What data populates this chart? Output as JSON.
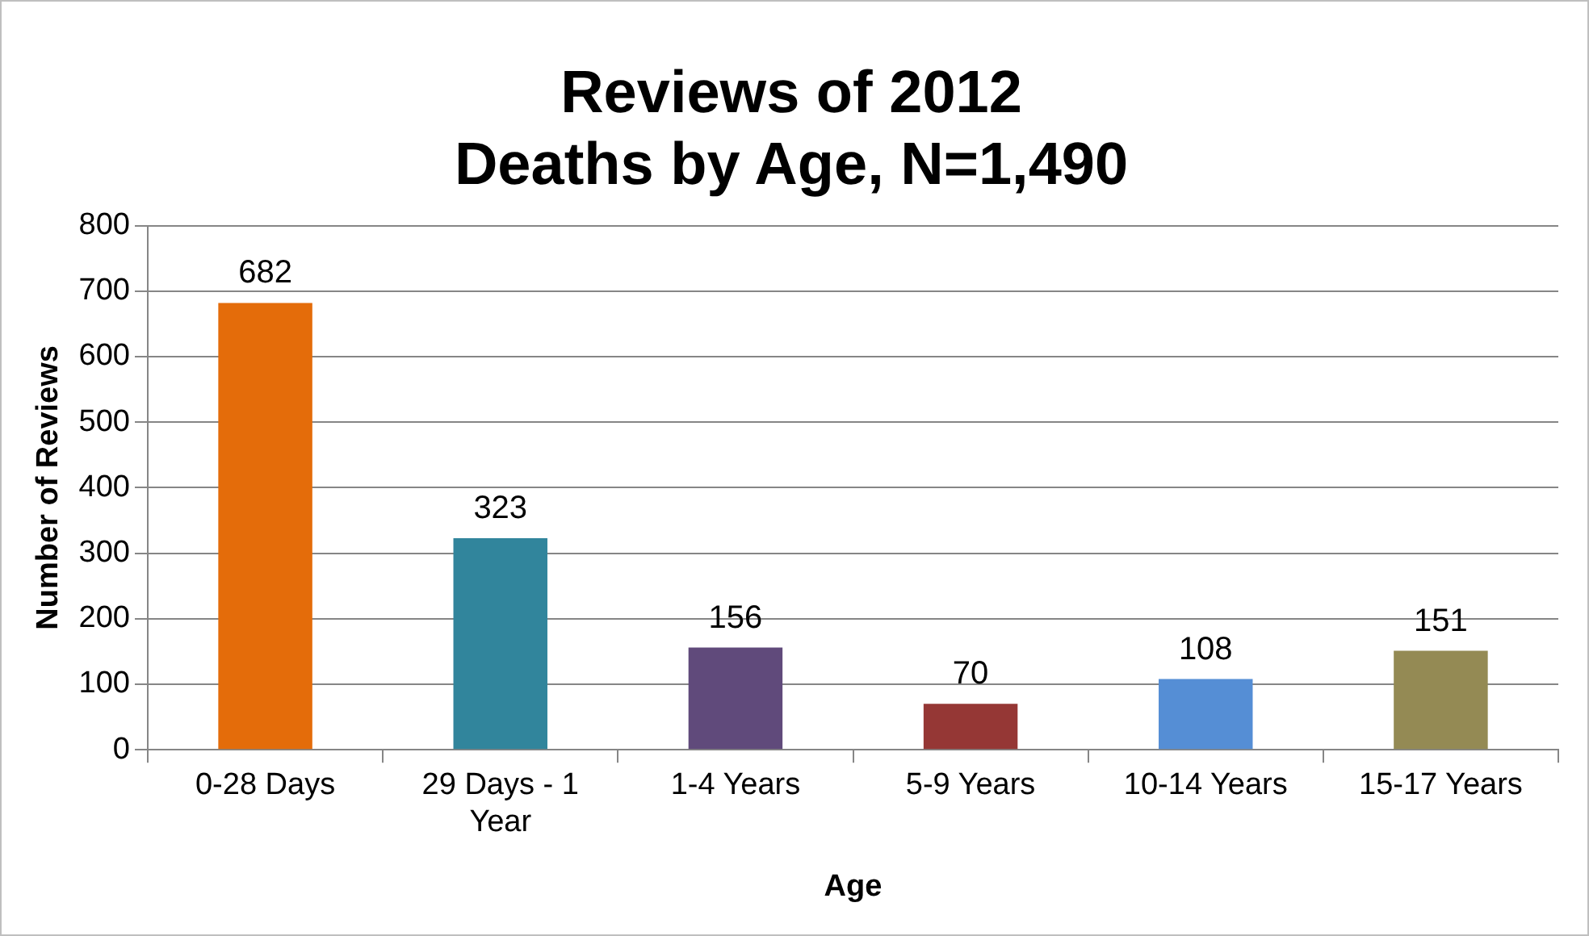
{
  "chart_data": {
    "type": "bar",
    "title": "Reviews of 2012\nDeaths by Age, N=1,490",
    "xlabel": "Age",
    "ylabel": "Number of Reviews",
    "categories": [
      "0-28 Days",
      "29 Days - 1 Year",
      "1-4 Years",
      "5-9 Years",
      "10-14 Years",
      "15-17 Years"
    ],
    "values": [
      682,
      323,
      156,
      70,
      108,
      151
    ],
    "colors": [
      "#e46c0a",
      "#31859c",
      "#604a7b",
      "#953735",
      "#558ed5",
      "#948a54"
    ],
    "ylim": [
      0,
      800
    ],
    "yticks": [
      0,
      100,
      200,
      300,
      400,
      500,
      600,
      700,
      800
    ],
    "grid": "y",
    "data_labels": true,
    "legend": false
  }
}
